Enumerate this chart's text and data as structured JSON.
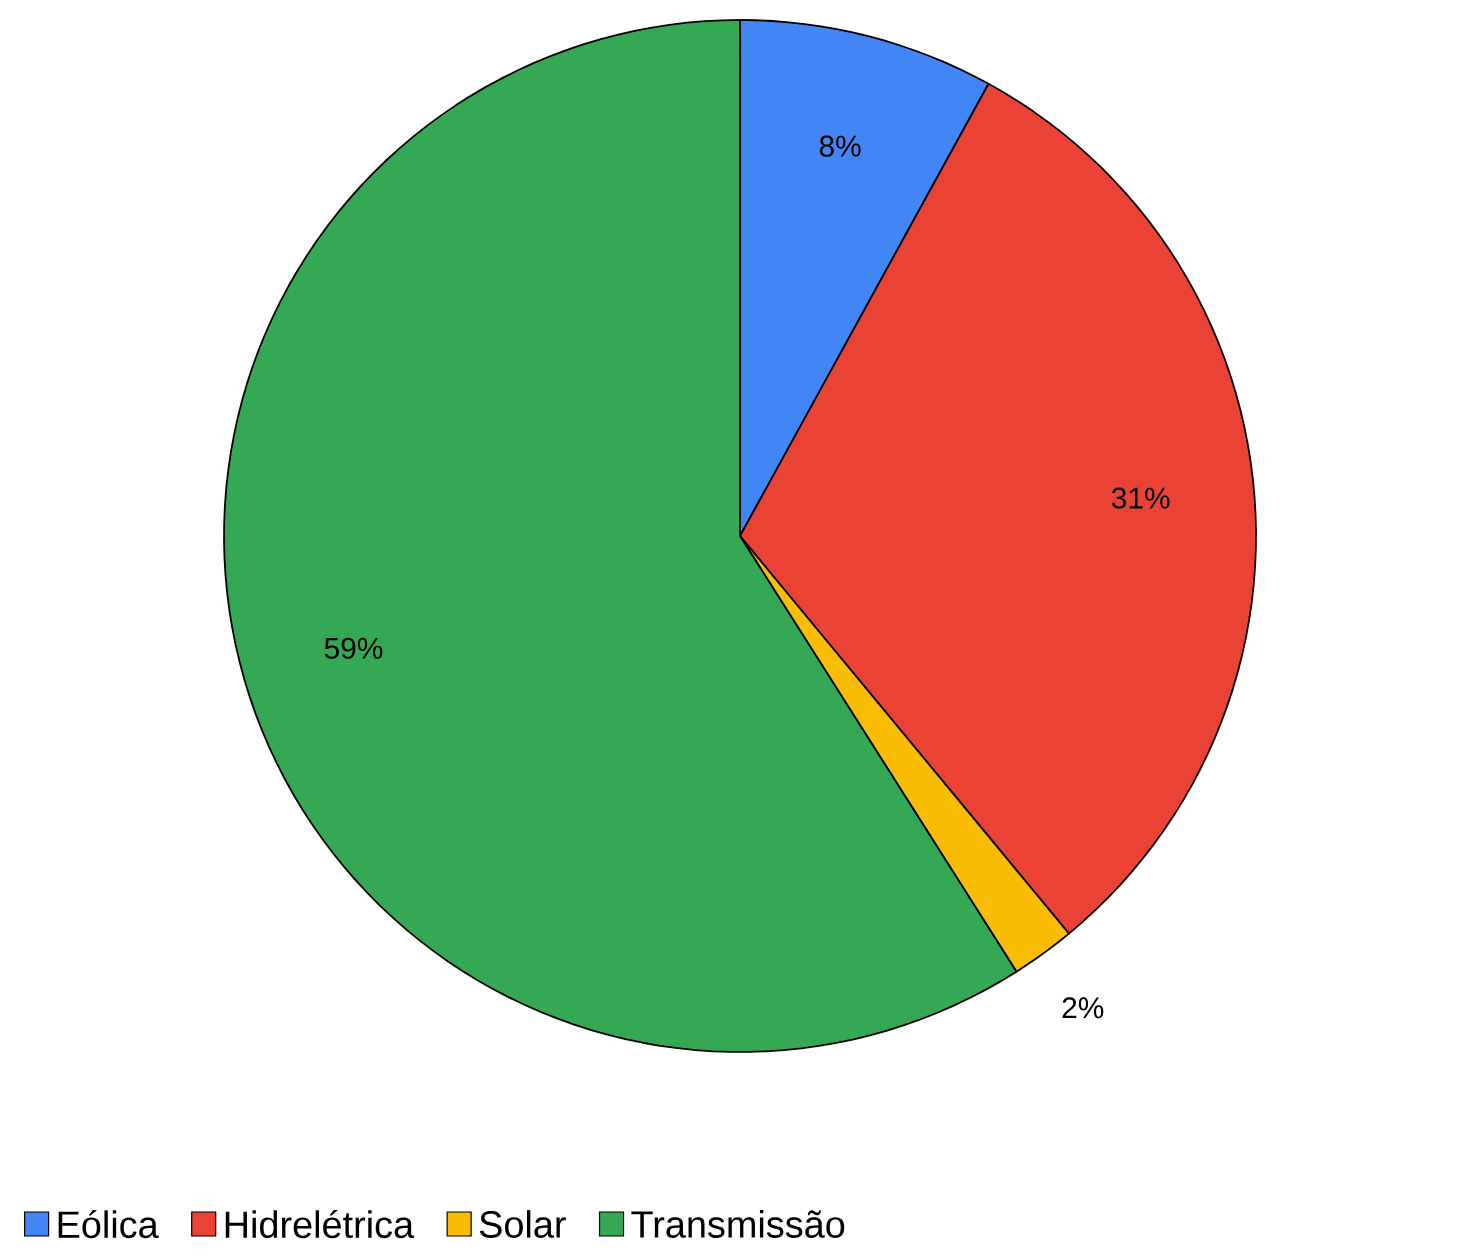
{
  "chart_data": {
    "type": "pie",
    "categories": [
      "Eólica",
      "Hidrelétrica",
      "Solar",
      "Transmissão"
    ],
    "values": [
      8,
      31,
      2,
      59
    ],
    "colors": [
      "#4285f4",
      "#ea4335",
      "#fbbc04",
      "#34a853"
    ],
    "value_labels": [
      "8%",
      "31%",
      "2%",
      "59%"
    ],
    "legend": "bottom"
  }
}
